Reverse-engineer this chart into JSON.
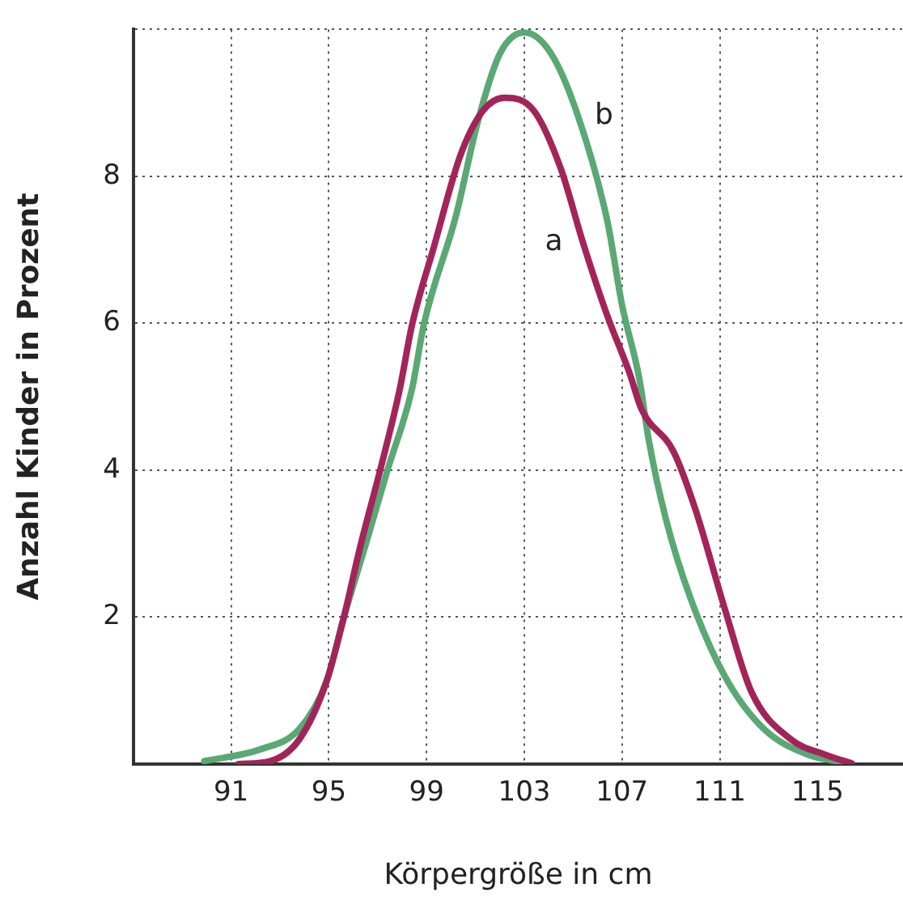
{
  "chart_data": {
    "type": "line",
    "xlabel": "Körpergröße in cm",
    "ylabel": "Anzahl Kinder in Prozent",
    "xlim": [
      87,
      118.5
    ],
    "xticks": [
      91,
      95,
      99,
      103,
      107,
      111,
      115
    ],
    "ylim": [
      0,
      10
    ],
    "yticks": [
      2,
      4,
      6,
      8,
      {
        "value": 10,
        "label": null
      }
    ],
    "grid": true,
    "line_style": "solid",
    "marker": "none",
    "series": [
      {
        "name": "a",
        "color": "#a3245a",
        "x": [
          91.3,
          92.6,
          93.8,
          94.9,
          95.6,
          96.3,
          97.1,
          97.9,
          98.4,
          99.3,
          100.4,
          101.3,
          102.2,
          103.4,
          104.5,
          105.4,
          106.4,
          107.3,
          107.8,
          109.1,
          110.0,
          111.2,
          112.3,
          113.9,
          115.3,
          116.4
        ],
        "values": [
          0,
          0.04,
          0.34,
          1.12,
          1.98,
          2.98,
          4.0,
          5.1,
          5.97,
          7.04,
          8.3,
          8.89,
          9.07,
          8.89,
          8.1,
          7.1,
          6.1,
          5.33,
          4.83,
          4.26,
          3.47,
          2.12,
          0.98,
          0.34,
          0.13,
          0.01
        ]
      },
      {
        "name": "b",
        "color": "#5aa874",
        "x": [
          89.9,
          92.2,
          93.8,
          94.9,
          95.6,
          96.5,
          97.4,
          98.4,
          98.9,
          100.2,
          101.1,
          102.0,
          103.0,
          104.1,
          105.2,
          106.4,
          107.0,
          107.7,
          108.1,
          108.8,
          109.8,
          111.2,
          112.8,
          114.6,
          116.1
        ],
        "values": [
          0.04,
          0.2,
          0.48,
          1.12,
          1.98,
          2.98,
          4.0,
          5.1,
          6.0,
          7.46,
          8.75,
          9.67,
          9.96,
          9.67,
          8.82,
          7.39,
          6.25,
          5.26,
          4.4,
          3.33,
          2.26,
          1.2,
          0.48,
          0.13,
          0.02
        ]
      }
    ]
  }
}
